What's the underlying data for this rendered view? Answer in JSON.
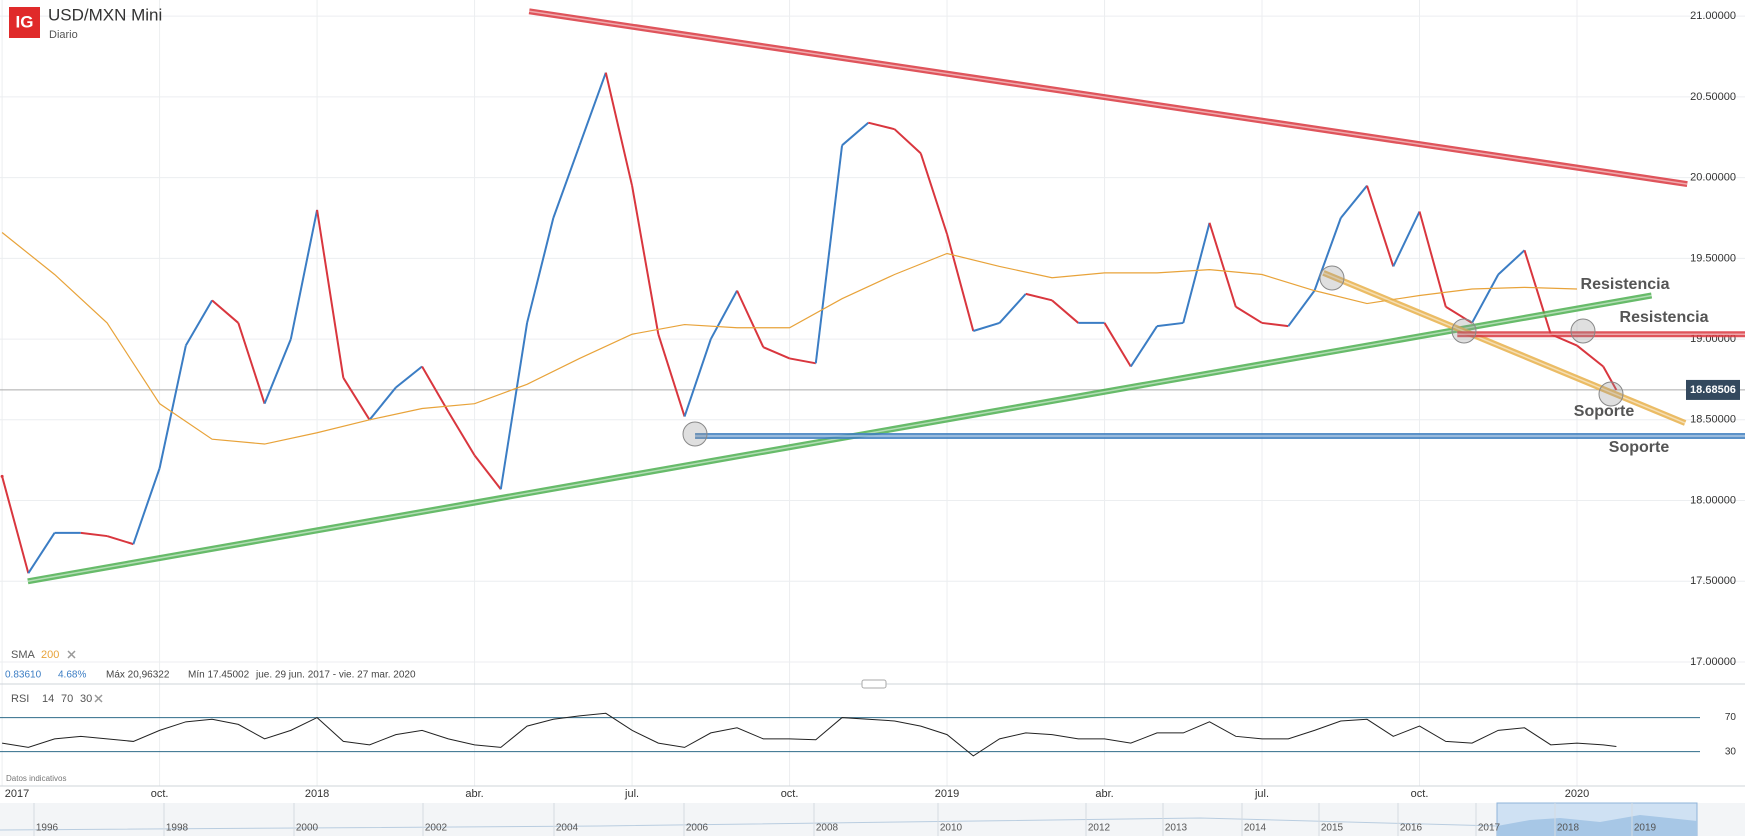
{
  "header": {
    "logo": "IG"
  },
  "chart_data": [
    {
      "type": "line",
      "title": "USD/MXN Mini",
      "subtitle": "Diario",
      "xlim": [
        5.96,
        39.2
      ],
      "xticks": [
        {
          "value": 6,
          "label": "2017"
        },
        {
          "value": 9,
          "label": "oct."
        },
        {
          "value": 12,
          "label": "2018"
        },
        {
          "value": 15,
          "label": "abr."
        },
        {
          "value": 18,
          "label": "jul."
        },
        {
          "value": 21,
          "label": "oct."
        },
        {
          "value": 24,
          "label": "2019"
        },
        {
          "value": 27,
          "label": "abr."
        },
        {
          "value": 30,
          "label": "jul."
        },
        {
          "value": 33,
          "label": "oct."
        },
        {
          "value": 36,
          "label": "2020"
        }
      ],
      "ylim": [
        16.87,
        21.1
      ],
      "yticks": [
        {
          "value": 17,
          "label": "17.00000"
        },
        {
          "value": 17.5,
          "label": "17.50000"
        },
        {
          "value": 18,
          "label": "18.00000"
        },
        {
          "value": 18.5,
          "label": "18.50000"
        },
        {
          "value": 19,
          "label": "19.00000"
        },
        {
          "value": 19.5,
          "label": "19.50000"
        },
        {
          "value": 20,
          "label": "20.00000"
        },
        {
          "value": 20.5,
          "label": "20.50000"
        },
        {
          "value": 21,
          "label": "21.00000"
        }
      ],
      "grid": true,
      "series": [
        {
          "x": [
            6,
            6.5,
            7,
            7.5,
            8,
            8.5,
            9,
            9.5,
            10,
            10.5,
            11,
            11.5,
            12,
            12.5,
            13,
            13.5,
            14,
            14.5,
            15,
            15.5,
            16,
            16.5,
            17,
            17.5,
            18,
            18.5,
            19,
            19.5,
            20,
            20.5,
            21,
            21.5,
            22,
            22.5,
            23,
            23.5,
            24,
            24.5,
            25,
            25.5,
            26,
            26.5,
            27,
            27.5,
            28,
            28.5,
            29,
            29.5,
            30,
            30.5,
            31,
            31.5,
            32,
            32.5,
            33,
            33.5,
            34,
            34.5,
            35,
            35.5,
            36,
            36.5,
            36.75
          ],
          "values": [
            18.15,
            17.55,
            17.8,
            17.8,
            17.78,
            17.73,
            18.2,
            18.96,
            19.24,
            19.1,
            18.6,
            19.0,
            19.8,
            18.76,
            18.5,
            18.7,
            18.83,
            18.55,
            18.28,
            18.07,
            19.1,
            19.75,
            20.2,
            20.65,
            19.95,
            19.03,
            18.52,
            19.0,
            19.3,
            18.95,
            18.88,
            18.85,
            20.2,
            20.34,
            20.3,
            20.15,
            19.65,
            19.05,
            19.1,
            19.28,
            19.24,
            19.1,
            19.1,
            18.83,
            19.08,
            19.1,
            19.72,
            19.2,
            19.1,
            19.08,
            19.3,
            19.75,
            19.95,
            19.45,
            19.79,
            19.2,
            19.1,
            19.4,
            19.55,
            19.03,
            18.96,
            18.83,
            18.68506
          ],
          "up_color": "#3b7dc4",
          "down_color": "#d9363e"
        },
        {
          "name": "SMA",
          "period": 200,
          "x": [
            6,
            7,
            8,
            9,
            10,
            11,
            12,
            13,
            14,
            15,
            16,
            17,
            18,
            19,
            20,
            21,
            22,
            23,
            24,
            25,
            26,
            27,
            28,
            29,
            30,
            31,
            32,
            33,
            34,
            35,
            36
          ],
          "values": [
            19.66,
            19.4,
            19.1,
            18.6,
            18.38,
            18.35,
            18.42,
            18.5,
            18.57,
            18.6,
            18.72,
            18.88,
            19.03,
            19.09,
            19.07,
            19.07,
            19.25,
            19.4,
            19.53,
            19.45,
            19.38,
            19.41,
            19.41,
            19.43,
            19.4,
            19.3,
            19.22,
            19.27,
            19.31,
            19.32,
            19.31
          ],
          "color": "#e8a33a"
        }
      ],
      "last_price": 18.68506,
      "trendlines": [
        {
          "x": [
            16.04,
            38.1
          ],
          "values": [
            21.03,
            19.96
          ],
          "color": "#d9363e"
        },
        {
          "x": [
            6.49,
            37.42
          ],
          "values": [
            17.5,
            19.27
          ],
          "color": "#4caf50"
        },
        {
          "x": [
            31.17,
            38.06
          ],
          "values": [
            19.41,
            18.48
          ],
          "color": "#e8b04a"
        },
        {
          "x": [
            33.72,
            39.2
          ],
          "values": [
            19.03,
            19.03
          ],
          "color": "#d9363e"
        },
        {
          "x": [
            19.2,
            39.2
          ],
          "values": [
            18.4,
            18.4
          ],
          "color": "#3f7fbf"
        }
      ],
      "annotations": [
        "Resistencia",
        "Resistencia",
        "Soporte",
        "Soporte"
      ],
      "stats": {
        "change": "0.83610",
        "change_pct": "4.68%",
        "max": "Máx 20,96322",
        "min": "Mín 17.45002",
        "range": "jue. 29 jun. 2017 - vie. 27 mar. 2020"
      }
    },
    {
      "type": "line",
      "title": "RSI",
      "period": 14,
      "upper": 70,
      "lower": 30,
      "x": [
        6,
        6.5,
        7,
        7.5,
        8,
        8.5,
        9,
        9.5,
        10,
        10.5,
        11,
        11.5,
        12,
        12.5,
        13,
        13.5,
        14,
        14.5,
        15,
        15.5,
        16,
        16.5,
        17,
        17.5,
        18,
        18.5,
        19,
        19.5,
        20,
        20.5,
        21,
        21.5,
        22,
        22.5,
        23,
        23.5,
        24,
        24.5,
        25,
        25.5,
        26,
        26.5,
        27,
        27.5,
        28,
        28.5,
        29,
        29.5,
        30,
        30.5,
        31,
        31.5,
        32,
        32.5,
        33,
        33.5,
        34,
        34.5,
        35,
        35.5,
        36,
        36.5,
        36.75
      ],
      "values": [
        40,
        35,
        45,
        48,
        45,
        42,
        55,
        65,
        68,
        62,
        45,
        55,
        70,
        42,
        38,
        50,
        55,
        45,
        38,
        35,
        60,
        68,
        72,
        75,
        55,
        40,
        35,
        52,
        58,
        45,
        45,
        44,
        70,
        68,
        66,
        60,
        50,
        25,
        45,
        52,
        50,
        45,
        45,
        40,
        52,
        52,
        65,
        48,
        45,
        45,
        55,
        66,
        68,
        48,
        60,
        42,
        40,
        55,
        58,
        38,
        40,
        38,
        36
      ],
      "color": "#222222",
      "guide_color": "#2f6b8a",
      "xlim": [
        5.96,
        39.2
      ],
      "ylim": [
        12,
        100
      ],
      "yticks": [
        30,
        70
      ]
    }
  ],
  "footnote": "Datos indicativos",
  "navigator": {
    "years": [
      "1996",
      "1998",
      "2000",
      "2002",
      "2004",
      "2006",
      "2008",
      "2010",
      "2012",
      "2013",
      "2014",
      "2015",
      "2016",
      "2017",
      "2018",
      "2019"
    ]
  }
}
